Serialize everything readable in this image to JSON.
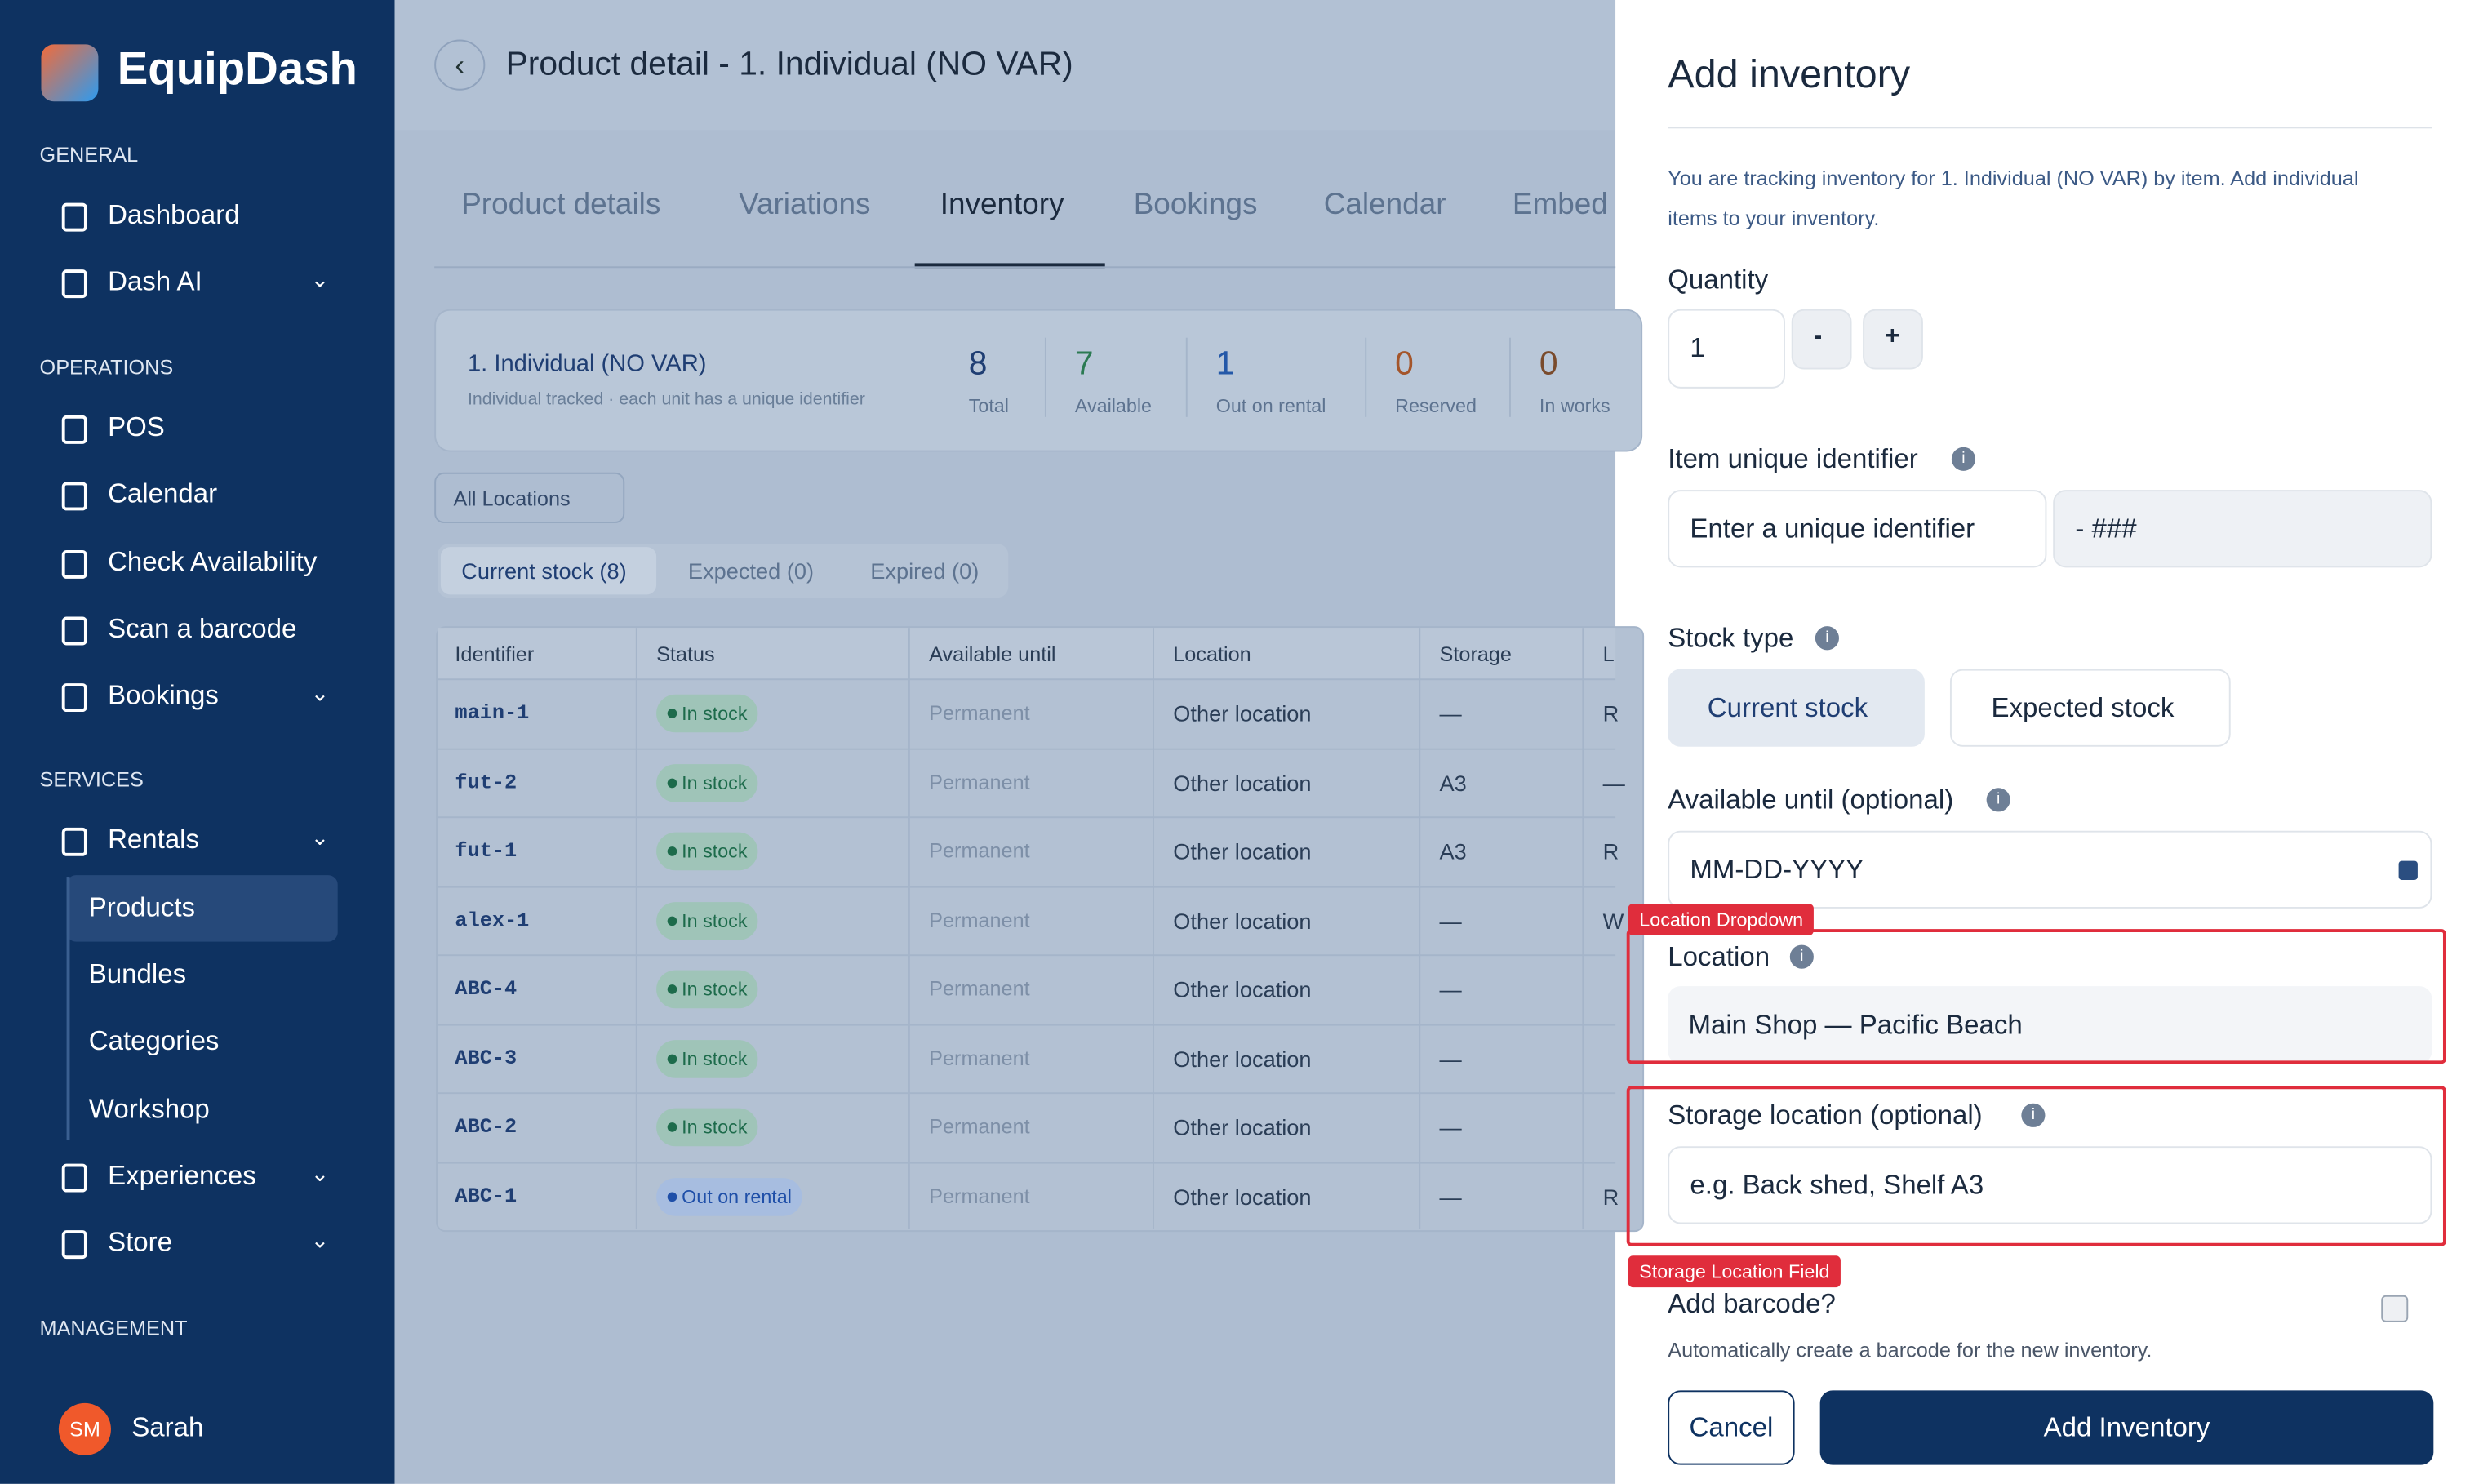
{
  "app": {
    "name": "EquipDash"
  },
  "sidebar": {
    "sections": [
      {
        "title": "GENERAL",
        "items": [
          "Dashboard",
          "Dash AI"
        ]
      },
      {
        "title": "OPERATIONS",
        "items": [
          "POS",
          "Calendar",
          "Check Availability",
          "Scan a barcode",
          "Bookings"
        ]
      },
      {
        "title": "SERVICES",
        "items": [
          "Rentals",
          "Products",
          "Bundles",
          "Categories",
          "Workshop",
          "Experiences",
          "Store"
        ]
      },
      {
        "title": "MANAGEMENT",
        "items": []
      }
    ],
    "user": {
      "initials": "SM",
      "name": "Sarah"
    }
  },
  "header": {
    "title": "Product detail - 1. Individual (NO VAR)"
  },
  "tabs": [
    "Product details",
    "Variations",
    "Inventory",
    "Bookings",
    "Calendar",
    "Embed"
  ],
  "summary": {
    "name": "1. Individual (NO VAR)",
    "description": "Individual tracked · each unit has a unique identifier",
    "stats": [
      {
        "value": 8,
        "label": "Total"
      },
      {
        "value": 7,
        "label": "Available"
      },
      {
        "value": 1,
        "label": "Out on rental"
      },
      {
        "value": 0,
        "label": "Reserved"
      },
      {
        "value": 0,
        "label": "In works"
      }
    ]
  },
  "filters": {
    "location": "All Locations",
    "stock_tabs": [
      "Current stock (8)",
      "Expected (0)",
      "Expired (0)"
    ]
  },
  "table": {
    "columns": [
      "Identifier",
      "Status",
      "Available until",
      "Location",
      "Storage",
      "L"
    ],
    "rows": [
      [
        "main-1",
        "In stock",
        "Permanent",
        "Other location",
        "—",
        "R"
      ],
      [
        "fut-2",
        "In stock",
        "Permanent",
        "Other location",
        "A3",
        "—"
      ],
      [
        "fut-1",
        "In stock",
        "Permanent",
        "Other location",
        "A3",
        "R"
      ],
      [
        "alex-1",
        "In stock",
        "Permanent",
        "Other location",
        "—",
        "W"
      ],
      [
        "ABC-4",
        "In stock",
        "Permanent",
        "Other location",
        "—"
      ],
      [
        "ABC-3",
        "In stock",
        "Permanent",
        "Other location",
        "—"
      ],
      [
        "ABC-2",
        "In stock",
        "Permanent",
        "Other location",
        "—"
      ],
      [
        "ABC-1",
        "Out on rental",
        "Permanent",
        "Other location",
        "—",
        "R"
      ]
    ]
  },
  "panel": {
    "title": "Add inventory",
    "info": "You are tracking inventory for 1. Individual (NO VAR) by item. Add individual items to your inventory.",
    "quantity": {
      "label": "Quantity",
      "value": "1",
      "minus": "-",
      "plus": "+"
    },
    "identifier": {
      "label": "Item unique identifier",
      "placeholder": "Enter a unique identifier",
      "suffix": "- ###"
    },
    "stock_type": {
      "label": "Stock type",
      "options": [
        "Current stock",
        "Expected stock"
      ]
    },
    "available_until": {
      "label": "Available until (optional)",
      "placeholder": "MM-DD-YYYY"
    },
    "location": {
      "annotation": "Location Dropdown",
      "label": "Location",
      "value": "Main Shop — Pacific Beach"
    },
    "storage": {
      "annotation": "Storage Location Field",
      "label": "Storage location (optional)",
      "placeholder": "e.g. Back shed, Shelf A3"
    },
    "barcode": {
      "label": "Add barcode?",
      "help": "Automatically create a barcode for the new inventory."
    },
    "buttons": {
      "cancel": "Cancel",
      "submit": "Add Inventory"
    }
  }
}
